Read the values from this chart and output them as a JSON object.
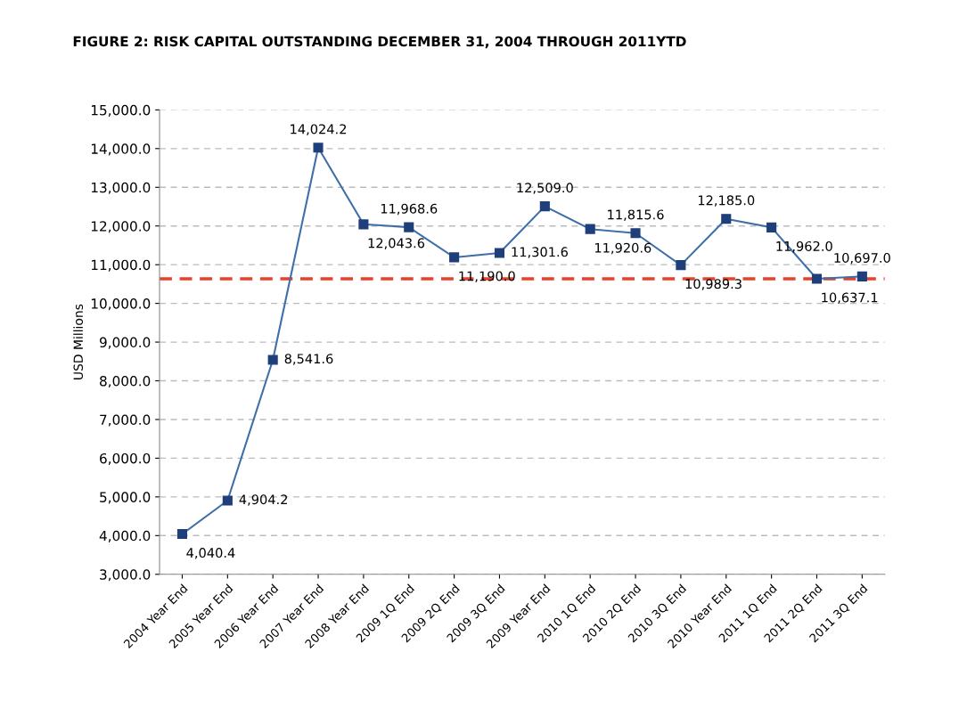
{
  "chart_data": {
    "type": "line",
    "title": "FIGURE 2: RISK CAPITAL OUTSTANDING DECEMBER 31, 2004 THROUGH 2011YTD",
    "ylabel": "USD Millions",
    "categories": [
      "2004 Year End",
      "2005 Year End",
      "2006 Year End",
      "2007 Year End",
      "2008 Year End",
      "2009 1Q End",
      "2009 2Q End",
      "2009 3Q End",
      "2009 Year End",
      "2010 1Q End",
      "2010 2Q End",
      "2010 3Q End",
      "2010 Year End",
      "2011 1Q End",
      "2011 2Q End",
      "2011 3Q End"
    ],
    "series": [
      {
        "color": "#3f6fa8",
        "values": [
          4040.4,
          4904.2,
          8541.6,
          14024.2,
          12043.6,
          11968.6,
          11190.0,
          11301.6,
          12509.0,
          11920.6,
          11815.6,
          10989.3,
          12185.0,
          11962.0,
          10637.1,
          10697.0
        ],
        "value_labels": [
          "4,040.4",
          "4,904.2",
          "8,541.6",
          "14,024.2",
          "12,043.6",
          "11,968.6",
          "11,190.0",
          "11,301.6",
          "12,509.0",
          "11,920.6",
          "11,815.6",
          "10,989.3",
          "12,185.0",
          "11,962.0",
          "10,637.1",
          "10,697.0"
        ]
      }
    ],
    "ylim": [
      3000,
      15000
    ],
    "yticks": [
      {
        "value": 3000,
        "label": "3,000.0"
      },
      {
        "value": 4000,
        "label": "4,000.0"
      },
      {
        "value": 5000,
        "label": "5,000.0"
      },
      {
        "value": 6000,
        "label": "6,000.0"
      },
      {
        "value": 7000,
        "label": "7,000.0"
      },
      {
        "value": 8000,
        "label": "8,000.0"
      },
      {
        "value": 9000,
        "label": "9,000.0"
      },
      {
        "value": 10000,
        "label": "10,000.0"
      },
      {
        "value": 11000,
        "label": "11,000.0"
      },
      {
        "value": 12000,
        "label": "12,000.0"
      },
      {
        "value": 13000,
        "label": "13,000.0"
      },
      {
        "value": 14000,
        "label": "14,000.0"
      },
      {
        "value": 15000,
        "label": "15,000.0"
      }
    ],
    "ref_lines": [
      {
        "axis": "y",
        "value": 10637.1,
        "color": "#e8402a",
        "line_style": "dashed"
      }
    ],
    "grid": "y",
    "marker": "square",
    "line_style": "solid",
    "legend": false
  }
}
